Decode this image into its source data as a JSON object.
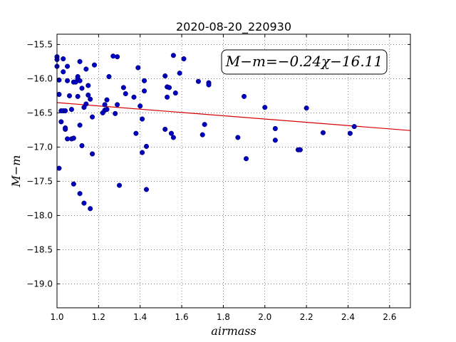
{
  "chart_data": {
    "type": "scatter",
    "title": "2020-08-20_220930",
    "xlabel": "airmass",
    "ylabel": "M−m",
    "xlim": [
      1.0,
      2.7
    ],
    "ylim": [
      -19.35,
      -15.35
    ],
    "y_inverted": true,
    "grid": true,
    "x_ticks": [
      "1.0",
      "1.2",
      "1.4",
      "1.6",
      "1.8",
      "2.0",
      "2.2",
      "2.4",
      "2.6"
    ],
    "y_ticks": [
      "−15.5",
      "−16.0",
      "−16.5",
      "−17.0",
      "−17.5",
      "−18.0",
      "−18.5",
      "−19.0"
    ],
    "annotation": "M−m=−0.24χ−16.11",
    "fit": {
      "slope": -0.24,
      "intercept": -16.11,
      "color": "#d40000"
    },
    "point_color": "#0000bf",
    "points": [
      [
        1.0,
        -15.68
      ],
      [
        1.0,
        -15.72
      ],
      [
        1.0,
        -15.82
      ],
      [
        1.01,
        -16.02
      ],
      [
        1.01,
        -16.23
      ],
      [
        1.01,
        -17.31
      ],
      [
        1.02,
        -16.47
      ],
      [
        1.02,
        -16.63
      ],
      [
        1.03,
        -16.47
      ],
      [
        1.03,
        -15.71
      ],
      [
        1.03,
        -15.9
      ],
      [
        1.04,
        -16.72
      ],
      [
        1.04,
        -16.74
      ],
      [
        1.04,
        -16.47
      ],
      [
        1.05,
        -15.82
      ],
      [
        1.05,
        -16.03
      ],
      [
        1.05,
        -16.88
      ],
      [
        1.06,
        -16.25
      ],
      [
        1.07,
        -16.45
      ],
      [
        1.07,
        -16.88
      ],
      [
        1.08,
        -16.87
      ],
      [
        1.08,
        -16.05
      ],
      [
        1.08,
        -17.54
      ],
      [
        1.09,
        -16.05
      ],
      [
        1.1,
        -16.26
      ],
      [
        1.1,
        -15.97
      ],
      [
        1.1,
        -16.0
      ],
      [
        1.11,
        -16.03
      ],
      [
        1.11,
        -15.75
      ],
      [
        1.11,
        -16.68
      ],
      [
        1.11,
        -17.68
      ],
      [
        1.12,
        -16.14
      ],
      [
        1.12,
        -16.98
      ],
      [
        1.13,
        -16.42
      ],
      [
        1.13,
        -17.82
      ],
      [
        1.14,
        -15.86
      ],
      [
        1.14,
        -16.37
      ],
      [
        1.15,
        -16.1
      ],
      [
        1.15,
        -16.24
      ],
      [
        1.16,
        -17.9
      ],
      [
        1.16,
        -16.3
      ],
      [
        1.17,
        -16.56
      ],
      [
        1.17,
        -17.1
      ],
      [
        1.18,
        -15.8
      ],
      [
        1.22,
        -16.5
      ],
      [
        1.23,
        -16.38
      ],
      [
        1.23,
        -16.46
      ],
      [
        1.24,
        -16.45
      ],
      [
        1.24,
        -16.31
      ],
      [
        1.25,
        -15.97
      ],
      [
        1.27,
        -15.67
      ],
      [
        1.28,
        -16.51
      ],
      [
        1.29,
        -15.68
      ],
      [
        1.29,
        -16.38
      ],
      [
        1.3,
        -17.56
      ],
      [
        1.32,
        -16.13
      ],
      [
        1.33,
        -16.22
      ],
      [
        1.37,
        -16.27
      ],
      [
        1.38,
        -16.8
      ],
      [
        1.39,
        -15.84
      ],
      [
        1.4,
        -16.4
      ],
      [
        1.41,
        -16.59
      ],
      [
        1.41,
        -17.08
      ],
      [
        1.42,
        -16.18
      ],
      [
        1.42,
        -16.03
      ],
      [
        1.43,
        -16.99
      ],
      [
        1.43,
        -17.62
      ],
      [
        1.52,
        -15.96
      ],
      [
        1.52,
        -16.74
      ],
      [
        1.53,
        -16.12
      ],
      [
        1.53,
        -16.27
      ],
      [
        1.54,
        -16.13
      ],
      [
        1.55,
        -16.8
      ],
      [
        1.56,
        -15.66
      ],
      [
        1.56,
        -16.86
      ],
      [
        1.57,
        -16.21
      ],
      [
        1.59,
        -15.92
      ],
      [
        1.61,
        -15.71
      ],
      [
        1.68,
        -16.04
      ],
      [
        1.7,
        -16.82
      ],
      [
        1.71,
        -16.67
      ],
      [
        1.73,
        -16.06
      ],
      [
        1.73,
        -16.09
      ],
      [
        1.87,
        -16.86
      ],
      [
        1.9,
        -16.26
      ],
      [
        1.91,
        -17.17
      ],
      [
        2.0,
        -16.42
      ],
      [
        2.05,
        -16.73
      ],
      [
        2.05,
        -16.9
      ],
      [
        2.16,
        -17.04
      ],
      [
        2.17,
        -17.04
      ],
      [
        2.2,
        -16.43
      ],
      [
        2.28,
        -16.79
      ],
      [
        2.41,
        -16.8
      ],
      [
        2.43,
        -16.7
      ]
    ]
  }
}
